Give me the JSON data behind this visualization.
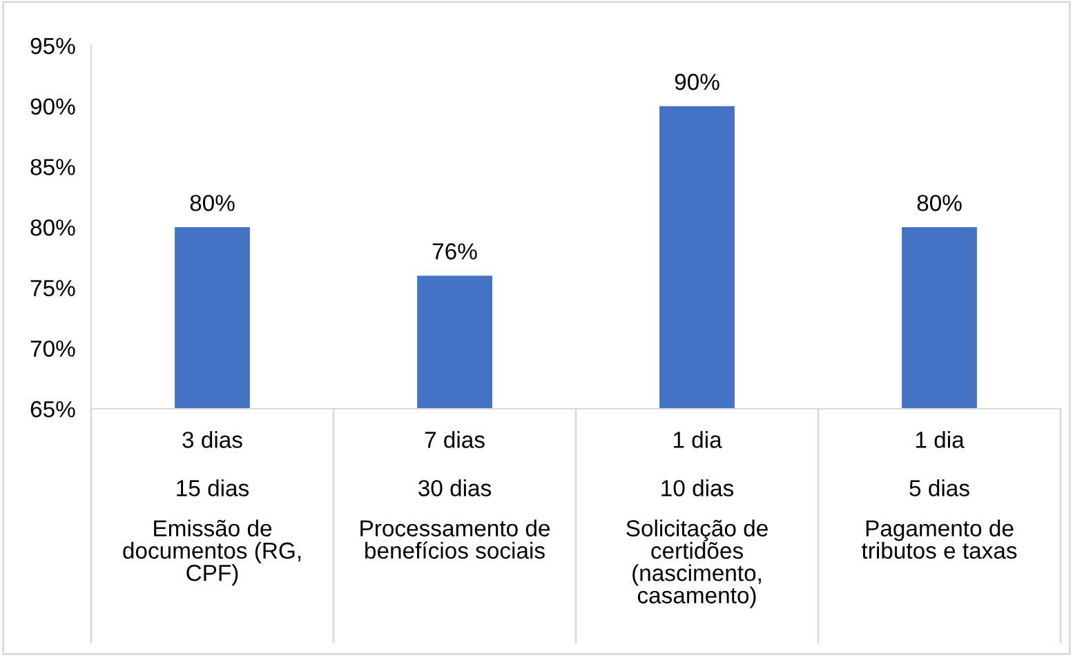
{
  "chart_data": {
    "type": "bar",
    "categories": [
      "Emissão de documentos (RG, CPF)",
      "Processamento de benefícios sociais",
      "Solicitação de certidões (nascimento, casamento)",
      "Pagamento de tributos e taxas"
    ],
    "values": [
      80,
      76,
      90,
      80
    ],
    "value_labels": [
      "80%",
      "76%",
      "90%",
      "80%"
    ],
    "color": "#4472c4",
    "ylim": [
      65,
      95
    ],
    "yticks": [
      {
        "value": 65,
        "label": "65%"
      },
      {
        "value": 70,
        "label": "70%"
      },
      {
        "value": 75,
        "label": "75%"
      },
      {
        "value": 80,
        "label": "80%"
      },
      {
        "value": 85,
        "label": "85%"
      },
      {
        "value": 90,
        "label": "90%"
      },
      {
        "value": 95,
        "label": "95%"
      }
    ],
    "annotations": [
      "3 dias",
      "7 dias",
      "1 dia",
      "1 dia",
      "15 dias",
      "30 dias",
      "10 dias",
      "5 dias"
    ],
    "grid": false
  }
}
